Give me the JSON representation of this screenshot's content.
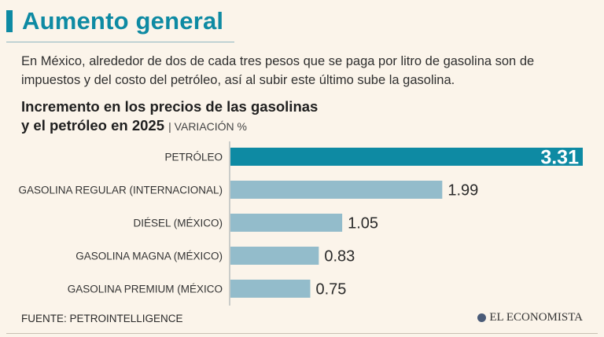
{
  "header": {
    "title": "Aumento general",
    "intro": "En México, alrededor de dos de cada tres pesos que se paga por litro de gasolina son de impuestos y del costo del petróleo, así al subir este último sube la gasolina."
  },
  "chart_data": {
    "type": "bar",
    "orientation": "horizontal",
    "title_line1": "Incremento en los precios de las gasolinas",
    "title_line2": "y el petróleo en 2025",
    "subtitle": "| VARIACIÓN %",
    "categories": [
      "PETRÓLEO",
      "GASOLINA REGULAR (INTERNACIONAL)",
      "DIÉSEL (MÉXICO)",
      "GASOLINA MAGNA (MÉXICO)",
      "GASOLINA PREMIUM (MÉXICO"
    ],
    "values": [
      3.31,
      1.99,
      1.05,
      0.83,
      0.75
    ],
    "value_labels": [
      "3.31",
      "1.99",
      "1.05",
      "0.83",
      "0.75"
    ],
    "xlim": [
      0,
      3.31
    ],
    "highlight_index": 0,
    "colors": {
      "highlight": "#0e8aa3",
      "bar": "#93bccb",
      "axis": "#9aa3a8"
    }
  },
  "footer": {
    "source": "FUENTE: PETROINTELLIGENCE",
    "brand": "EL ECONOMISTA"
  }
}
